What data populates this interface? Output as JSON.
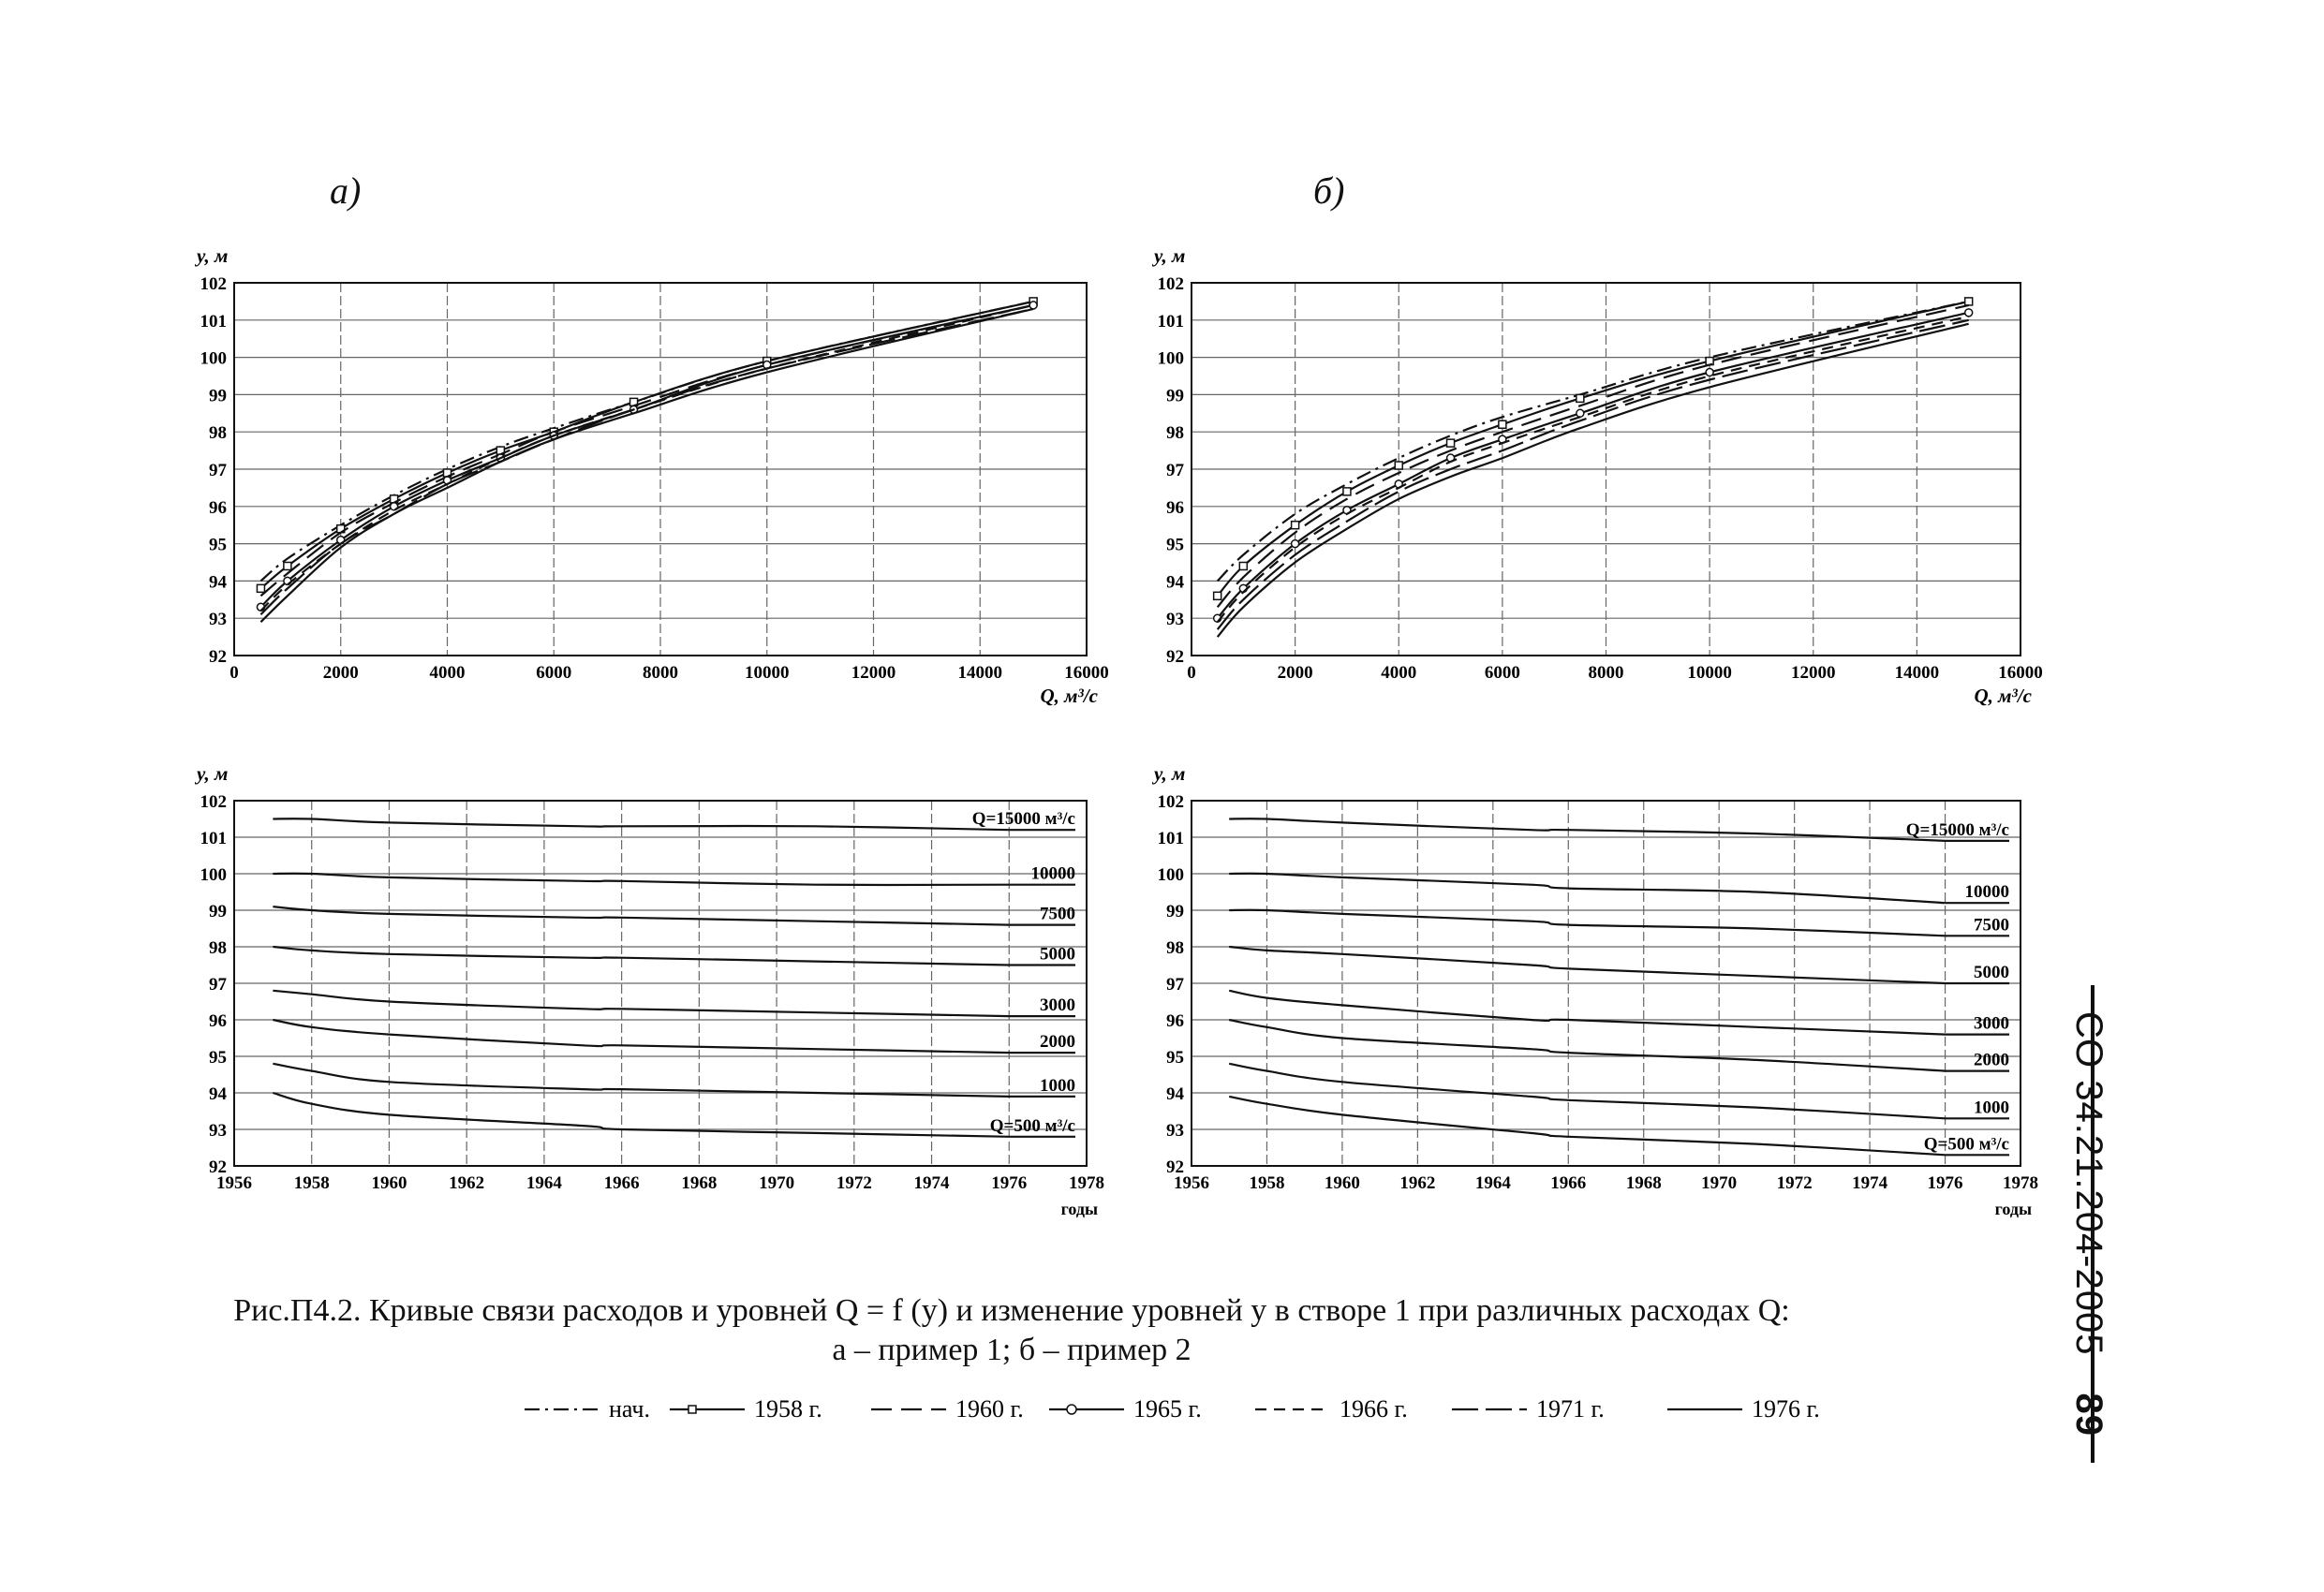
{
  "panel_labels": {
    "a": "а)",
    "b": "б)"
  },
  "caption": {
    "line1": "Рис.П4.2. Кривые связи расходов и уровней Q = f (y) и изменение уровней y в створе 1 при различных расходах Q:",
    "line2": "а – пример 1; б – пример 2"
  },
  "legend": [
    {
      "label": "нач.",
      "style": "dashdot"
    },
    {
      "label": "1958 г.",
      "style": "square-marker"
    },
    {
      "label": "1960 г.",
      "style": "long-dash"
    },
    {
      "label": "1965 г.",
      "style": "circle-marker"
    },
    {
      "label": "1966 г.",
      "style": "dash"
    },
    {
      "label": "1971 г.",
      "style": "dash-long"
    },
    {
      "label": "1976 г.",
      "style": "solid"
    }
  ],
  "side_note": {
    "code": "СО 34.21.204-2005",
    "page": "89"
  },
  "colors": {
    "line": "#111111",
    "grid": "#555555",
    "background": "#ffffff"
  },
  "chart_data": [
    {
      "id": "a-top",
      "type": "line",
      "xlabel": "Q, м³/с",
      "ylabel": "y, м",
      "xlim": [
        0,
        16000
      ],
      "ylim": [
        92,
        102
      ],
      "xticks": [
        "0",
        "2000",
        "4000",
        "6000",
        "8000",
        "10000",
        "12000",
        "14000",
        "16000"
      ],
      "yticks": [
        "92",
        "93",
        "94",
        "95",
        "96",
        "97",
        "98",
        "99",
        "100",
        "101",
        "102"
      ],
      "grid": true,
      "x": [
        500,
        1000,
        2000,
        3000,
        4000,
        5000,
        6000,
        7500,
        10000,
        15000
      ],
      "series": [
        {
          "name": "нач.",
          "values": [
            94.0,
            94.6,
            95.5,
            96.3,
            97.0,
            97.6,
            98.1,
            98.8,
            99.9,
            101.5
          ]
        },
        {
          "name": "1958 г.",
          "values": [
            93.8,
            94.4,
            95.4,
            96.2,
            96.9,
            97.5,
            98.0,
            98.8,
            99.9,
            101.5
          ]
        },
        {
          "name": "1960 г.",
          "values": [
            93.6,
            94.2,
            95.3,
            96.1,
            96.8,
            97.4,
            98.0,
            98.7,
            99.8,
            101.4
          ]
        },
        {
          "name": "1965 г.",
          "values": [
            93.3,
            94.0,
            95.1,
            96.0,
            96.7,
            97.3,
            97.9,
            98.6,
            99.8,
            101.4
          ]
        },
        {
          "name": "1966 г.",
          "values": [
            93.2,
            93.9,
            95.0,
            95.9,
            96.6,
            97.3,
            97.9,
            98.6,
            99.7,
            101.4
          ]
        },
        {
          "name": "1971 г.",
          "values": [
            93.1,
            93.8,
            95.0,
            95.8,
            96.6,
            97.2,
            97.8,
            98.6,
            99.7,
            101.3
          ]
        },
        {
          "name": "1976 г.",
          "values": [
            92.9,
            93.6,
            94.9,
            95.8,
            96.5,
            97.2,
            97.8,
            98.5,
            99.6,
            101.3
          ]
        }
      ]
    },
    {
      "id": "b-top",
      "type": "line",
      "xlabel": "Q, м³/с",
      "ylabel": "y, м",
      "xlim": [
        0,
        16000
      ],
      "ylim": [
        92,
        102
      ],
      "xticks": [
        "0",
        "2000",
        "4000",
        "6000",
        "8000",
        "10000",
        "12000",
        "14000",
        "16000"
      ],
      "yticks": [
        "92",
        "93",
        "94",
        "95",
        "96",
        "97",
        "98",
        "99",
        "100",
        "101",
        "102"
      ],
      "grid": true,
      "x": [
        500,
        1000,
        2000,
        3000,
        4000,
        5000,
        6000,
        7500,
        10000,
        15000
      ],
      "series": [
        {
          "name": "нач.",
          "values": [
            94.0,
            94.7,
            95.8,
            96.6,
            97.3,
            97.9,
            98.4,
            99.0,
            100.0,
            101.5
          ]
        },
        {
          "name": "1958 г.",
          "values": [
            93.6,
            94.4,
            95.5,
            96.4,
            97.1,
            97.7,
            98.2,
            98.9,
            99.9,
            101.5
          ]
        },
        {
          "name": "1960 г.",
          "values": [
            93.3,
            94.1,
            95.3,
            96.2,
            96.9,
            97.5,
            98.0,
            98.7,
            99.8,
            101.4
          ]
        },
        {
          "name": "1965 г.",
          "values": [
            93.0,
            93.8,
            95.0,
            95.9,
            96.6,
            97.3,
            97.8,
            98.5,
            99.6,
            101.2
          ]
        },
        {
          "name": "1966 г.",
          "values": [
            92.9,
            93.7,
            94.9,
            95.8,
            96.5,
            97.2,
            97.7,
            98.4,
            99.5,
            101.1
          ]
        },
        {
          "name": "1971 г.",
          "values": [
            92.7,
            93.5,
            94.7,
            95.6,
            96.4,
            97.0,
            97.5,
            98.3,
            99.4,
            101.0
          ]
        },
        {
          "name": "1976 г.",
          "values": [
            92.5,
            93.3,
            94.5,
            95.4,
            96.2,
            96.8,
            97.3,
            98.1,
            99.2,
            100.9
          ]
        }
      ]
    },
    {
      "id": "a-bottom",
      "type": "line",
      "xlabel": "годы",
      "ylabel": "y, м",
      "xlim": [
        1956,
        1978
      ],
      "ylim": [
        92,
        102
      ],
      "xticks": [
        "1956",
        "1958",
        "1960",
        "1962",
        "1964",
        "1966",
        "1968",
        "1970",
        "1972",
        "1974",
        "1976",
        "1978"
      ],
      "yticks": [
        "92",
        "93",
        "94",
        "95",
        "96",
        "97",
        "98",
        "99",
        "100",
        "101",
        "102"
      ],
      "grid": true,
      "x": [
        1957,
        1958,
        1960,
        1965,
        1966,
        1971,
        1976
      ],
      "series": [
        {
          "name": "Q=15000 м³/с",
          "values": [
            101.5,
            101.5,
            101.4,
            101.3,
            101.3,
            101.3,
            101.2
          ]
        },
        {
          "name": "10000",
          "values": [
            100.0,
            100.0,
            99.9,
            99.8,
            99.8,
            99.7,
            99.7
          ]
        },
        {
          "name": "7500",
          "values": [
            99.1,
            99.0,
            98.9,
            98.8,
            98.8,
            98.7,
            98.6
          ]
        },
        {
          "name": "5000",
          "values": [
            98.0,
            97.9,
            97.8,
            97.7,
            97.7,
            97.6,
            97.5
          ]
        },
        {
          "name": "3000",
          "values": [
            96.8,
            96.7,
            96.5,
            96.3,
            96.3,
            96.2,
            96.1
          ]
        },
        {
          "name": "2000",
          "values": [
            96.0,
            95.8,
            95.6,
            95.3,
            95.3,
            95.2,
            95.1
          ]
        },
        {
          "name": "1000",
          "values": [
            94.8,
            94.6,
            94.3,
            94.1,
            94.1,
            94.0,
            93.9
          ]
        },
        {
          "name": "Q=500 м³/с",
          "values": [
            94.0,
            93.7,
            93.4,
            93.1,
            93.0,
            92.9,
            92.8
          ]
        }
      ]
    },
    {
      "id": "b-bottom",
      "type": "line",
      "xlabel": "годы",
      "ylabel": "y, м",
      "xlim": [
        1956,
        1978
      ],
      "ylim": [
        92,
        102
      ],
      "xticks": [
        "1956",
        "1958",
        "1960",
        "1962",
        "1964",
        "1966",
        "1968",
        "1970",
        "1972",
        "1974",
        "1976",
        "1978"
      ],
      "yticks": [
        "92",
        "93",
        "94",
        "95",
        "96",
        "97",
        "98",
        "99",
        "100",
        "101",
        "102"
      ],
      "grid": true,
      "x": [
        1957,
        1958,
        1960,
        1965,
        1966,
        1971,
        1976
      ],
      "series": [
        {
          "name": "Q=15000 м³/с",
          "values": [
            101.5,
            101.5,
            101.4,
            101.2,
            101.2,
            101.1,
            100.9
          ]
        },
        {
          "name": "10000",
          "values": [
            100.0,
            100.0,
            99.9,
            99.7,
            99.6,
            99.5,
            99.2
          ]
        },
        {
          "name": "7500",
          "values": [
            99.0,
            99.0,
            98.9,
            98.7,
            98.6,
            98.5,
            98.3
          ]
        },
        {
          "name": "5000",
          "values": [
            98.0,
            97.9,
            97.8,
            97.5,
            97.4,
            97.2,
            97.0
          ]
        },
        {
          "name": "3000",
          "values": [
            96.8,
            96.6,
            96.4,
            96.0,
            96.0,
            95.8,
            95.6
          ]
        },
        {
          "name": "2000",
          "values": [
            96.0,
            95.8,
            95.5,
            95.2,
            95.1,
            94.9,
            94.6
          ]
        },
        {
          "name": "1000",
          "values": [
            94.8,
            94.6,
            94.3,
            93.9,
            93.8,
            93.6,
            93.3
          ]
        },
        {
          "name": "Q=500 м³/с",
          "values": [
            93.9,
            93.7,
            93.4,
            92.9,
            92.8,
            92.6,
            92.3
          ]
        }
      ]
    }
  ]
}
